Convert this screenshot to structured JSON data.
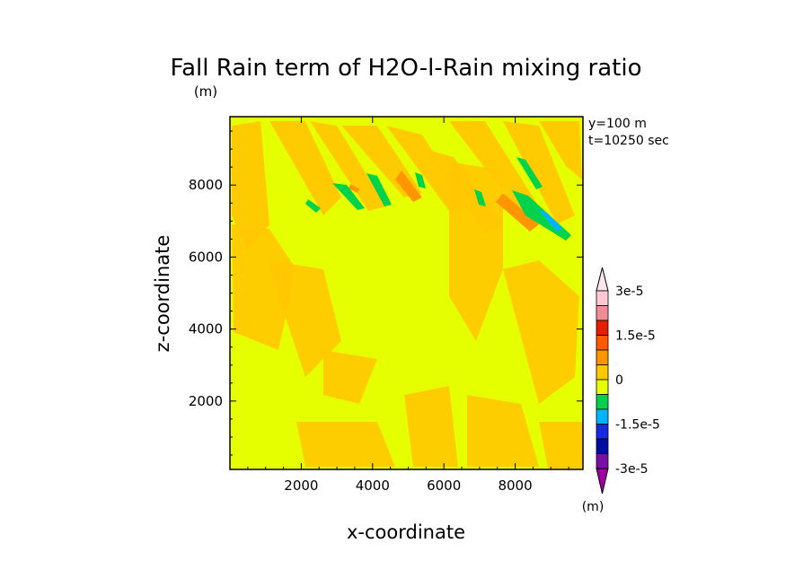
{
  "chart_data": {
    "type": "heatmap",
    "title": "Fall Rain term of H2O-l-Rain mixing ratio",
    "units_label": "(m)",
    "xlabel": "x-coordinate",
    "ylabel": "z-coordinate",
    "xlim": [
      0,
      9900
    ],
    "ylim": [
      100,
      9900
    ],
    "x_ticks": [
      "2000",
      "4000",
      "6000",
      "8000"
    ],
    "y_ticks": [
      "2000",
      "4000",
      "6000",
      "8000"
    ],
    "info_lines": [
      "y=100 m",
      "t=10250 sec"
    ],
    "colorbar": {
      "labels": [
        "3e-5",
        "1.5e-5",
        "0",
        "-1.5e-5",
        "-3e-5"
      ],
      "units": "(m)",
      "levels": [
        -3e-05,
        -2.5e-05,
        -2e-05,
        -1.5e-05,
        -1e-05,
        -5e-06,
        0,
        5e-06,
        1e-05,
        1.5e-05,
        2e-05,
        2.5e-05,
        3e-05
      ],
      "colors": [
        "#7a0fa5",
        "#000ca0",
        "#1428e6",
        "#00b4ff",
        "#00d24b",
        "#e6ff00",
        "#ffc800",
        "#ff9600",
        "#ff5a00",
        "#e61e00",
        "#f08c96",
        "#ffc8d2"
      ]
    },
    "background_color": "#e6ff00",
    "features": [
      {
        "kind": "positive-band",
        "description": "diagonal bands of small positive values (0 to 5e-6)"
      },
      {
        "kind": "negative-streaks",
        "description": "green/cyan negative streaks near z 7000-9000, x 2000-9500"
      }
    ]
  }
}
